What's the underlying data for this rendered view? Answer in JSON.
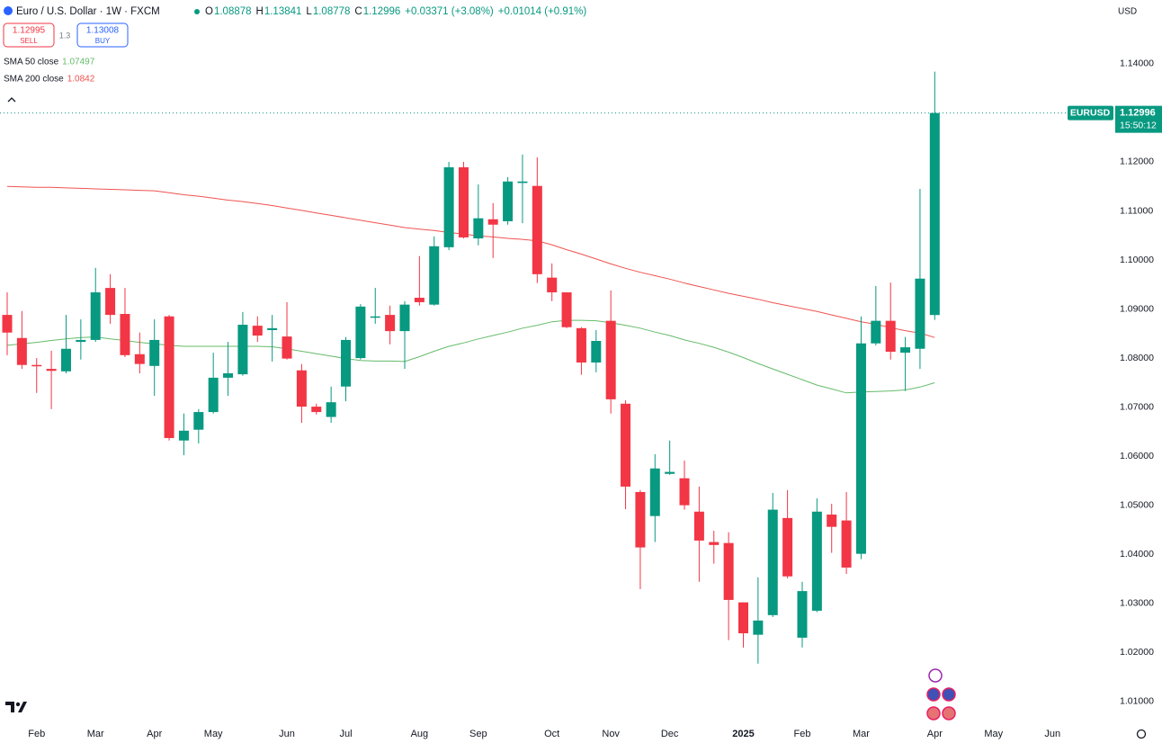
{
  "header": {
    "symbol": "Euro / U.S. Dollar · 1W · FXCM",
    "ohlc_letters": [
      "O",
      "H",
      "L",
      "C"
    ],
    "change": "+0.03371 (+3.08%)",
    "change_2": "+0.01014 (+0.91%)",
    "sell_price": "1.12995",
    "sell": "SELL",
    "spread": "1.3",
    "buy_price": "1.13008",
    "buy": "BUY",
    "currency": "USD",
    "ticker": "EURUSD",
    "countdown": "15:50:12"
  },
  "chart_data": {
    "type": "candlestick",
    "up_color": "#089981",
    "down_color": "#f23645",
    "grid": false,
    "categories": [
      null,
      null,
      "Feb",
      null,
      null,
      null,
      "Mar",
      null,
      null,
      null,
      "Apr",
      null,
      null,
      null,
      "May",
      null,
      null,
      null,
      null,
      "Jun",
      null,
      null,
      null,
      "Jul",
      null,
      null,
      null,
      null,
      "Aug",
      null,
      null,
      null,
      "Sep",
      null,
      null,
      null,
      null,
      "Oct",
      null,
      null,
      null,
      "Nov",
      null,
      null,
      null,
      "Dec",
      null,
      null,
      null,
      null,
      "2025",
      null,
      null,
      null,
      "Feb",
      null,
      null,
      null,
      "Mar",
      null,
      null,
      null,
      null,
      "Apr",
      null,
      null,
      null,
      "May",
      null,
      null,
      null,
      "Jun"
    ],
    "open": [
      1.0888,
      1.0841,
      1.0786,
      1.0778,
      1.0773,
      1.0833,
      1.0837,
      1.0943,
      1.089,
      1.0808,
      1.0784,
      1.0885,
      1.0632,
      1.0654,
      1.069,
      1.076,
      1.0767,
      1.0866,
      1.0857,
      1.0844,
      1.0775,
      1.0701,
      1.068,
      1.0742,
      1.08,
      1.0883,
      1.0888,
      1.0855,
      1.0923,
      1.0909,
      1.1026,
      1.1189,
      1.1044,
      1.1083,
      1.1079,
      1.1157,
      1.1151,
      1.0964,
      1.0934,
      1.0861,
      1.0791,
      1.0876,
      1.0707,
      1.0527,
      1.0478,
      1.0564,
      1.0555,
      1.0487,
      1.0425,
      1.0423,
      1.0302,
      1.0236,
      1.0276,
      1.0474,
      1.023,
      1.0285,
      1.0481,
      1.0469,
      1.0401,
      1.083,
      1.0876,
      1.0811,
      1.0819,
      1.08878,
      null,
      null,
      null,
      null,
      null,
      null,
      null,
      null
    ],
    "high": [
      1.0934,
      1.0896,
      1.08,
      1.0815,
      1.0888,
      1.0879,
      1.0984,
      1.0971,
      1.0943,
      1.0852,
      1.0879,
      1.0888,
      1.0687,
      1.0696,
      1.0811,
      1.0833,
      1.0894,
      1.0885,
      1.0888,
      1.0914,
      1.0788,
      1.0707,
      1.0742,
      1.0843,
      1.091,
      1.0943,
      1.0907,
      1.0916,
      1.1008,
      1.1048,
      1.12,
      1.12,
      1.1154,
      1.1116,
      1.1169,
      1.1215,
      1.1209,
      1.0993,
      1.0934,
      1.0863,
      1.0857,
      1.0938,
      1.0714,
      1.0531,
      1.0604,
      1.0632,
      1.0591,
      1.0538,
      1.0448,
      1.0445,
      1.0302,
      1.0353,
      1.0525,
      1.0531,
      1.0344,
      1.0514,
      1.0503,
      1.0527,
      1.0885,
      1.0947,
      1.0954,
      1.0843,
      1.1145,
      1.13841,
      null,
      null,
      null,
      null,
      null,
      null,
      null,
      null
    ],
    "low": [
      1.0806,
      1.0778,
      1.0729,
      1.0696,
      1.0769,
      1.0797,
      1.0833,
      1.087,
      1.0802,
      1.0769,
      1.0723,
      1.0632,
      1.0602,
      1.0626,
      1.0687,
      1.0723,
      1.0764,
      1.0833,
      1.0793,
      1.0797,
      1.0668,
      1.0685,
      1.0668,
      1.0712,
      1.0797,
      1.087,
      1.0828,
      1.0778,
      1.0907,
      1.0907,
      1.102,
      1.1044,
      1.103,
      1.1004,
      1.1072,
      1.1075,
      1.0953,
      1.0916,
      1.0861,
      1.0766,
      1.0771,
      1.0687,
      1.0492,
      1.0329,
      1.0425,
      1.0562,
      1.0491,
      1.0344,
      1.0381,
      1.0225,
      1.021,
      1.0177,
      1.0272,
      1.0351,
      1.021,
      1.0282,
      1.0403,
      1.036,
      1.039,
      1.0826,
      1.0797,
      1.0733,
      1.0778,
      1.08778,
      null,
      null,
      null,
      null,
      null,
      null,
      null,
      null
    ],
    "close": [
      1.0852,
      1.0786,
      1.0784,
      1.0774,
      1.0819,
      1.0837,
      1.0934,
      1.0888,
      1.0806,
      1.0788,
      1.0837,
      1.0637,
      1.0652,
      1.069,
      1.076,
      1.0769,
      1.0868,
      1.0846,
      1.0861,
      1.0799,
      1.0701,
      1.069,
      1.071,
      1.0837,
      1.0905,
      1.0885,
      1.0855,
      1.0909,
      1.0914,
      1.1028,
      1.1189,
      1.1046,
      1.1085,
      1.1072,
      1.116,
      1.116,
      1.0971,
      1.0934,
      1.0863,
      1.0791,
      1.0835,
      1.0716,
      1.0538,
      1.0414,
      1.0575,
      1.0568,
      1.05,
      1.0428,
      1.0419,
      1.0307,
      1.0239,
      1.0265,
      1.0491,
      1.0355,
      1.0325,
      1.0487,
      1.0456,
      1.0373,
      1.083,
      1.0876,
      1.0813,
      1.0822,
      1.0962,
      1.12996,
      null,
      null,
      null,
      null,
      null,
      null,
      null,
      null
    ],
    "series": [
      {
        "name": "SMA 50 close",
        "color": "#66bb6a",
        "values": [
          1.0826,
          1.0829,
          1.0832,
          1.0836,
          1.0839,
          1.0842,
          1.0843,
          1.0839,
          1.0836,
          1.0832,
          1.0829,
          1.0826,
          1.0824,
          1.0824,
          1.0824,
          1.0824,
          1.0824,
          1.0824,
          1.0823,
          1.0819,
          1.0814,
          1.0809,
          1.0804,
          1.0799,
          1.0795,
          1.0794,
          1.0794,
          1.0793,
          1.0803,
          1.0814,
          1.0824,
          1.0831,
          1.0839,
          1.0846,
          1.0853,
          1.0861,
          1.0867,
          1.0874,
          1.0877,
          1.0877,
          1.0876,
          1.0872,
          1.0867,
          1.0861,
          1.0853,
          1.0846,
          1.0837,
          1.083,
          1.0822,
          1.0812,
          1.0801,
          1.0789,
          1.0778,
          1.0767,
          1.0756,
          1.0745,
          1.0737,
          1.0729,
          1.0731,
          1.0732,
          1.0733,
          1.0735,
          1.0741,
          1.07497,
          null,
          null,
          null,
          null,
          null,
          null,
          null,
          null
        ]
      },
      {
        "name": "SMA 200 close",
        "color": "#ef5350",
        "values": [
          1.115,
          1.1149,
          1.1148,
          1.1148,
          1.1147,
          1.1146,
          1.1145,
          1.1144,
          1.1143,
          1.1142,
          1.1141,
          1.1137,
          1.1133,
          1.113,
          1.1126,
          1.1122,
          1.1119,
          1.1115,
          1.1111,
          1.1106,
          1.1101,
          1.1096,
          1.1091,
          1.1086,
          1.1081,
          1.1076,
          1.1071,
          1.1066,
          1.1063,
          1.106,
          1.1056,
          1.1053,
          1.1049,
          1.1047,
          1.1044,
          1.1042,
          1.1039,
          1.1031,
          1.1021,
          1.1012,
          1.1002,
          1.0992,
          1.0983,
          1.0975,
          1.0968,
          1.0961,
          1.0953,
          1.0946,
          1.0939,
          1.0932,
          1.0926,
          1.092,
          1.0913,
          1.0907,
          1.0901,
          1.0895,
          1.0888,
          1.0881,
          1.0874,
          1.0869,
          1.0862,
          1.0856,
          1.0851,
          1.0842,
          null,
          null,
          null,
          null,
          null,
          null,
          null,
          null
        ]
      }
    ],
    "ylim": [
      1.0063,
      1.153
    ],
    "yticks": [
      {
        "value": 1.01,
        "label": "1.01000"
      },
      {
        "value": 1.02,
        "label": "1.02000"
      },
      {
        "value": 1.03,
        "label": "1.03000"
      },
      {
        "value": 1.04,
        "label": "1.04000"
      },
      {
        "value": 1.05,
        "label": "1.05000"
      },
      {
        "value": 1.06,
        "label": "1.06000"
      },
      {
        "value": 1.07,
        "label": "1.07000"
      },
      {
        "value": 1.08,
        "label": "1.08000"
      },
      {
        "value": 1.09,
        "label": "1.09000"
      },
      {
        "value": 1.1,
        "label": "1.10000"
      },
      {
        "value": 1.11,
        "label": "1.11000"
      },
      {
        "value": 1.12,
        "label": "1.12000"
      },
      {
        "value": 1.13,
        "label": "1.13000"
      },
      {
        "value": 1.14,
        "label": "1.14000"
      }
    ]
  }
}
